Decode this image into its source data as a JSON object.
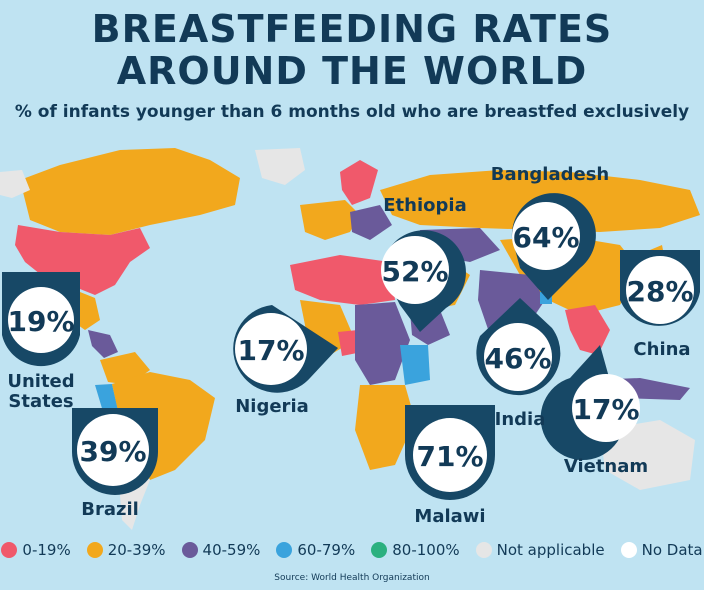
{
  "title_line1": "BREASTFEEDING RATES",
  "title_line2": "AROUND THE WORLD",
  "subtitle": "% of infants younger than 6 months old who are breastfed exclusively",
  "countries": [
    {
      "name": "United States",
      "name_line1": "United",
      "name_line2": "States",
      "value": "19%",
      "category": "0-19%"
    },
    {
      "name": "Brazil",
      "value": "39%",
      "category": "20-39%"
    },
    {
      "name": "Nigeria",
      "value": "17%",
      "category": "0-19%"
    },
    {
      "name": "Ethiopia",
      "value": "52%",
      "category": "40-59%"
    },
    {
      "name": "Malawi",
      "value": "71%",
      "category": "60-79%"
    },
    {
      "name": "Bangladesh",
      "value": "64%",
      "category": "60-79%"
    },
    {
      "name": "India",
      "value": "46%",
      "category": "40-59%"
    },
    {
      "name": "China",
      "value": "28%",
      "category": "20-39%"
    },
    {
      "name": "Vietnam",
      "value": "17%",
      "category": "0-19%"
    }
  ],
  "legend": [
    {
      "label": "0-19%",
      "color": "#f0596b"
    },
    {
      "label": "20-39%",
      "color": "#f2a81d"
    },
    {
      "label": "40-59%",
      "color": "#6a5a9a"
    },
    {
      "label": "60-79%",
      "color": "#3aa3dd"
    },
    {
      "label": "80-100%",
      "color": "#2bb07f"
    },
    {
      "label": "Not applicable",
      "color": "#e6e6e6"
    },
    {
      "label": "No Data",
      "color": "#ffffff"
    }
  ],
  "colors": {
    "ocean": "#bfe3f2",
    "pin": "#174866",
    "text": "#123a57"
  },
  "source": "Source: World Health Organization"
}
